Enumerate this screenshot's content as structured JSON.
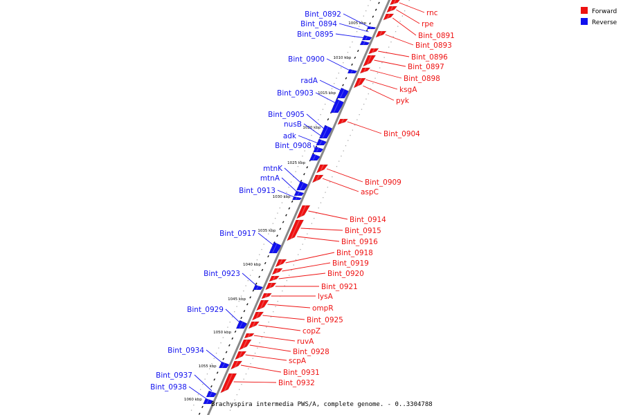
{
  "caption": "Brachyspira intermedia PWS/A, complete genome. - 0..3304788",
  "legend": [
    {
      "label": "Forward",
      "color": "#ee1111"
    },
    {
      "label": "Reverse",
      "color": "#1111ee"
    }
  ],
  "colors": {
    "forward": "#ee1111",
    "reverse": "#1111ee",
    "backbone": "#888888"
  },
  "ticks": [
    "1005 kbp",
    "1010 kbp",
    "1015 kbp",
    "1020 kbp",
    "1025 kbp",
    "1030 kbp",
    "1035 kbp",
    "1040 kbp",
    "1045 kbp",
    "1050 kbp",
    "1055 kbp",
    "1060 kbp"
  ],
  "forward_genes": [
    "rnc",
    "rpe",
    "Bint_0891",
    "Bint_0893",
    "Bint_0896",
    "Bint_0897",
    "Bint_0898",
    "ksgA",
    "pyk",
    "Bint_0904",
    "Bint_0909",
    "aspC",
    "Bint_0914",
    "Bint_0915",
    "Bint_0916",
    "Bint_0918",
    "Bint_0919",
    "Bint_0920",
    "Bint_0921",
    "lysA",
    "ompR",
    "Bint_0925",
    "copZ",
    "ruvA",
    "Bint_0928",
    "scpA",
    "Bint_0931",
    "Bint_0932"
  ],
  "reverse_genes": [
    "Bint_0892",
    "Bint_0894",
    "Bint_0895",
    "Bint_0900",
    "radA",
    "Bint_0903",
    "Bint_0905",
    "nusB",
    "adk",
    "Bint_0908",
    "mtnK",
    "mtnA",
    "Bint_0913",
    "Bint_0917",
    "Bint_0923",
    "Bint_0929",
    "Bint_0934",
    "Bint_0937",
    "Bint_0938"
  ]
}
